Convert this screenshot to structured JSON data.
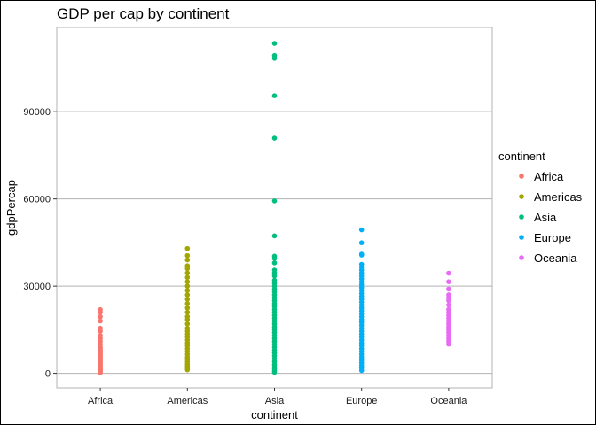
{
  "chart_data": {
    "type": "scatter",
    "title": "GDP per cap by continent",
    "xlabel": "continent",
    "ylabel": "gdpPercap",
    "categories": [
      "Africa",
      "Americas",
      "Asia",
      "Europe",
      "Oceania"
    ],
    "ylim": [
      -5000,
      119000
    ],
    "yticks": [
      0,
      30000,
      60000,
      90000
    ],
    "ytick_labels": [
      "0",
      "30000",
      "60000",
      "90000"
    ],
    "grid": "horizontal major",
    "legend": {
      "title": "continent",
      "position": "right"
    },
    "series": [
      {
        "name": "Africa",
        "color": "#F8766D",
        "category": "Africa",
        "values": [
          240,
          500,
          800,
          1000,
          1300,
          1600,
          2000,
          2400,
          2800,
          3200,
          3600,
          4000,
          4500,
          5000,
          5500,
          6000,
          6500,
          7000,
          7500,
          8000,
          8500,
          9000,
          10000,
          11000,
          12000,
          13000,
          14500,
          15500,
          18000,
          19500,
          21000,
          21900
        ]
      },
      {
        "name": "Americas",
        "color": "#A3A500",
        "category": "Americas",
        "values": [
          1200,
          1800,
          2500,
          3200,
          4000,
          4800,
          5500,
          6500,
          7500,
          8500,
          9500,
          10500,
          11500,
          12500,
          13500,
          14500,
          15500,
          17000,
          18500,
          19500,
          21000,
          22500,
          24000,
          25500,
          27000,
          28500,
          30000,
          31500,
          33000,
          34500,
          36000,
          37000,
          39000,
          40500,
          42950
        ]
      },
      {
        "name": "Asia",
        "color": "#00BF7D",
        "category": "Asia",
        "values": [
          330,
          800,
          1500,
          2200,
          3000,
          4000,
          5000,
          6000,
          7000,
          8000,
          9000,
          10000,
          11000,
          12000,
          13000,
          14000,
          15000,
          16000,
          17000,
          18000,
          19000,
          20000,
          21000,
          22000,
          23000,
          24000,
          25000,
          26000,
          27000,
          28000,
          29000,
          30000,
          31000,
          32000,
          33500,
          34500,
          35500,
          38000,
          39500,
          40300,
          47300,
          59300,
          80900,
          95500,
          108400,
          109350,
          113500
        ]
      },
      {
        "name": "Europe",
        "color": "#00B0F6",
        "category": "Europe",
        "values": [
          970,
          1800,
          2700,
          3600,
          4500,
          5500,
          6500,
          7500,
          8500,
          9500,
          10500,
          11500,
          12500,
          13500,
          14500,
          15500,
          16500,
          17500,
          18500,
          19500,
          20500,
          21500,
          22500,
          23500,
          24500,
          25500,
          26500,
          27500,
          28500,
          29500,
          30500,
          31500,
          32500,
          33500,
          34500,
          35500,
          36500,
          37500,
          40700,
          41000,
          44900,
          49360
        ]
      },
      {
        "name": "Oceania",
        "color": "#E76BF3",
        "category": "Oceania",
        "values": [
          10040,
          11000,
          12000,
          13000,
          14000,
          15000,
          16000,
          17000,
          18000,
          19000,
          20000,
          21000,
          22000,
          23500,
          25000,
          26000,
          27000,
          29000,
          31500,
          34440
        ]
      }
    ]
  }
}
